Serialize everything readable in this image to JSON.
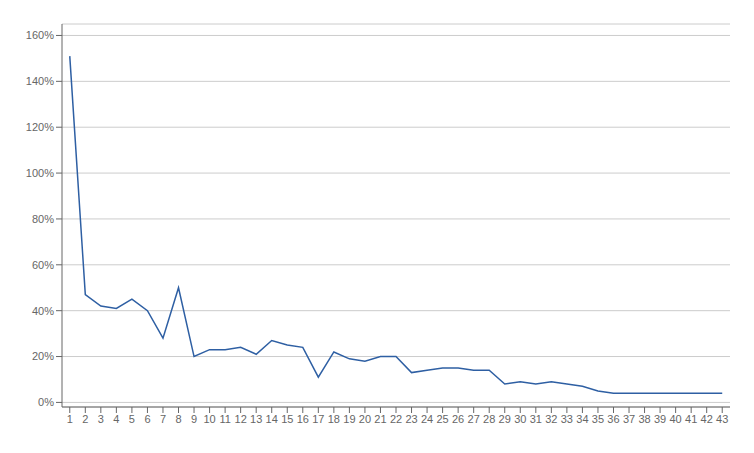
{
  "chart_data": {
    "type": "line",
    "x": [
      1,
      2,
      3,
      4,
      5,
      6,
      7,
      8,
      9,
      10,
      11,
      12,
      13,
      14,
      15,
      16,
      17,
      18,
      19,
      20,
      21,
      22,
      23,
      24,
      25,
      26,
      27,
      28,
      29,
      30,
      31,
      32,
      33,
      34,
      35,
      36,
      37,
      38,
      39,
      40,
      41,
      42,
      43
    ],
    "values": [
      1.51,
      0.47,
      0.42,
      0.41,
      0.45,
      0.4,
      0.28,
      0.5,
      0.2,
      0.23,
      0.23,
      0.24,
      0.21,
      0.27,
      0.25,
      0.24,
      0.11,
      0.22,
      0.19,
      0.18,
      0.2,
      0.2,
      0.13,
      0.14,
      0.15,
      0.15,
      0.14,
      0.14,
      0.08,
      0.09,
      0.08,
      0.09,
      0.08,
      0.07,
      0.05,
      0.04,
      0.04,
      0.04,
      0.04,
      0.04,
      0.04,
      0.04,
      0.04
    ],
    "color": "#2E5FA3",
    "xlim": [
      0.5,
      43.5
    ],
    "xticks": [
      1,
      2,
      3,
      4,
      5,
      6,
      7,
      8,
      9,
      10,
      11,
      12,
      13,
      14,
      15,
      16,
      17,
      18,
      19,
      20,
      21,
      22,
      23,
      24,
      25,
      26,
      27,
      28,
      29,
      30,
      31,
      32,
      33,
      34,
      35,
      36,
      37,
      38,
      39,
      40,
      41,
      42,
      43
    ],
    "ylim": [
      -0.02,
      1.65
    ],
    "yticks": [
      {
        "value": 0.0,
        "label": "0%"
      },
      {
        "value": 0.2,
        "label": "20%"
      },
      {
        "value": 0.4,
        "label": "40%"
      },
      {
        "value": 0.6,
        "label": "60%"
      },
      {
        "value": 0.8,
        "label": "80%"
      },
      {
        "value": 1.0,
        "label": "100%"
      },
      {
        "value": 1.2,
        "label": "120%"
      },
      {
        "value": 1.4,
        "label": "140%"
      },
      {
        "value": 1.6,
        "label": "160%"
      }
    ],
    "grid": true
  }
}
